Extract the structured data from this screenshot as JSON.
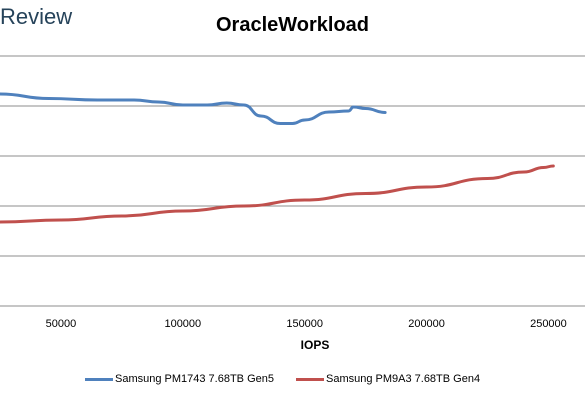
{
  "brand": "Review",
  "chart_data": {
    "type": "line",
    "title": "OracleWorkload",
    "xlabel": "IOPS",
    "ylabel": "",
    "x_ticks": [
      50000,
      100000,
      150000,
      200000,
      250000
    ],
    "xlim": [
      25000,
      265000
    ],
    "ylim": [
      0,
      5
    ],
    "grid": true,
    "legend": "bottom",
    "series": [
      {
        "name": "Samsung PM1743 7.68TB Gen5",
        "color": "#4f81bd",
        "x": [
          25000,
          45000,
          65000,
          80000,
          90000,
          100000,
          110000,
          118000,
          125000,
          132000,
          140000,
          145000,
          150000,
          160000,
          168000,
          170000,
          175000,
          183000
        ],
        "y": [
          4.24,
          4.15,
          4.12,
          4.12,
          4.08,
          4.02,
          4.02,
          4.06,
          4.02,
          3.8,
          3.65,
          3.65,
          3.72,
          3.88,
          3.9,
          3.98,
          3.95,
          3.87
        ]
      },
      {
        "name": "Samsung PM9A3 7.68TB Gen4",
        "color": "#c0504d",
        "x": [
          25000,
          50000,
          75000,
          100000,
          125000,
          150000,
          175000,
          200000,
          225000,
          240000,
          248000,
          252000
        ],
        "y": [
          1.68,
          1.72,
          1.8,
          1.9,
          2.0,
          2.12,
          2.25,
          2.38,
          2.55,
          2.68,
          2.77,
          2.8
        ]
      }
    ]
  }
}
